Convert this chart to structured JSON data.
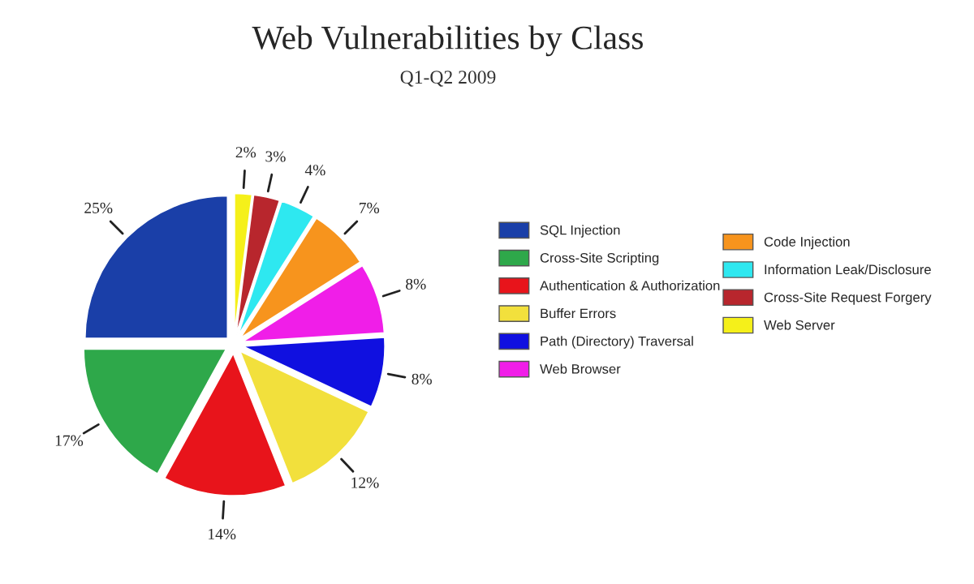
{
  "chart_data": {
    "type": "pie",
    "title": "Web Vulnerabilities by Class",
    "subtitle": "Q1-Q2 2009",
    "categories": [
      "SQL Injection",
      "Cross-Site Scripting",
      "Authentication & Authorization",
      "Buffer Errors",
      "Path (Directory) Traversal",
      "Web Browser",
      "Code Injection",
      "Information Leak/Disclosure",
      "Cross-Site Request Forgery",
      "Web Server"
    ],
    "values": [
      25,
      17,
      14,
      12,
      8,
      8,
      7,
      4,
      3,
      2
    ],
    "value_labels": [
      "25%",
      "17%",
      "14%",
      "12%",
      "8%",
      "8%",
      "7%",
      "4%",
      "3%",
      "2%"
    ],
    "colors": [
      "#1a3fa8",
      "#2ea84a",
      "#e8141b",
      "#f2e03c",
      "#1010e0",
      "#f01ee8",
      "#f7941d",
      "#2ee8f0",
      "#b8262d",
      "#f5f01a"
    ],
    "legend": "right"
  }
}
